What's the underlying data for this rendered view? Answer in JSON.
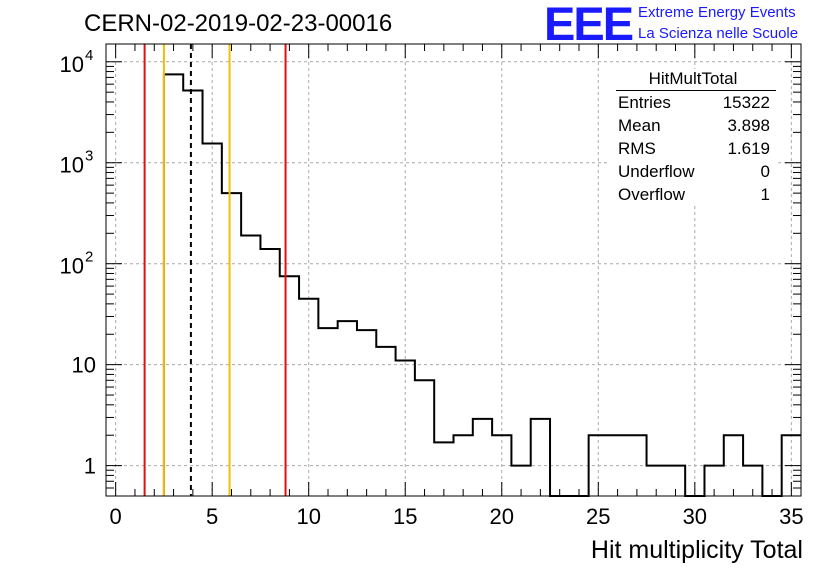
{
  "header": {
    "title": "CERN-02-2019-02-23-00016",
    "logo_text": "EEE",
    "logo_line1": "Extreme Energy Events",
    "logo_line2": "La Scienza nelle Scuole"
  },
  "stats": {
    "name": "HitMultTotal",
    "rows": [
      {
        "key": "Entries",
        "value": "15322"
      },
      {
        "key": "Mean",
        "value": "3.898"
      },
      {
        "key": "RMS",
        "value": "1.619"
      },
      {
        "key": "Underflow",
        "value": "0"
      },
      {
        "key": "Overflow",
        "value": "1"
      }
    ]
  },
  "colors": {
    "histogram": "#000000",
    "red_line": "#e01010",
    "yellow_line": "#f0c000",
    "grid": "#aaaaaa",
    "logo": "#1a1aff"
  },
  "chart_data": {
    "type": "histogram",
    "title": "CERN-02-2019-02-23-00016",
    "xlabel": "Hit multiplicity Total",
    "ylabel": "",
    "xlim": [
      -0.5,
      35.5
    ],
    "ylim": [
      0.5,
      15000
    ],
    "yscale": "log",
    "grid": true,
    "bin_width": 1,
    "bin_low_edges": [
      2.5,
      3.5,
      4.5,
      5.5,
      6.5,
      7.5,
      8.5,
      9.5,
      10.5,
      11.5,
      12.5,
      13.5,
      14.5,
      15.5,
      16.5,
      17.5,
      18.5,
      19.5,
      20.5,
      21.5,
      22.5,
      23.5,
      24.5,
      25.5,
      26.5,
      27.5,
      28.5,
      29.5,
      30.5,
      31.5,
      32.5,
      33.5,
      34.5
    ],
    "counts": [
      7500,
      5200,
      1550,
      500,
      190,
      140,
      75,
      45,
      23,
      27,
      22,
      15,
      11,
      7,
      1.7,
      2,
      2.9,
      2,
      1,
      2.9,
      0,
      0,
      2,
      2,
      2,
      1,
      1,
      0,
      1,
      2,
      1,
      0,
      2
    ],
    "x_ticks": [
      0,
      5,
      10,
      15,
      20,
      25,
      30,
      35
    ],
    "y_ticks": [
      {
        "value": 1,
        "label": "1"
      },
      {
        "value": 10,
        "label": "10"
      },
      {
        "value": 100,
        "label": "10",
        "exp": "2"
      },
      {
        "value": 1000,
        "label": "10",
        "exp": "3"
      },
      {
        "value": 10000,
        "label": "10",
        "exp": "4"
      }
    ],
    "vertical_lines": [
      {
        "x": 1.5,
        "style": "red"
      },
      {
        "x": 2.5,
        "style": "yellow"
      },
      {
        "x": 3.898,
        "style": "dashed-black"
      },
      {
        "x": 5.9,
        "style": "yellow"
      },
      {
        "x": 8.8,
        "style": "red"
      }
    ]
  }
}
